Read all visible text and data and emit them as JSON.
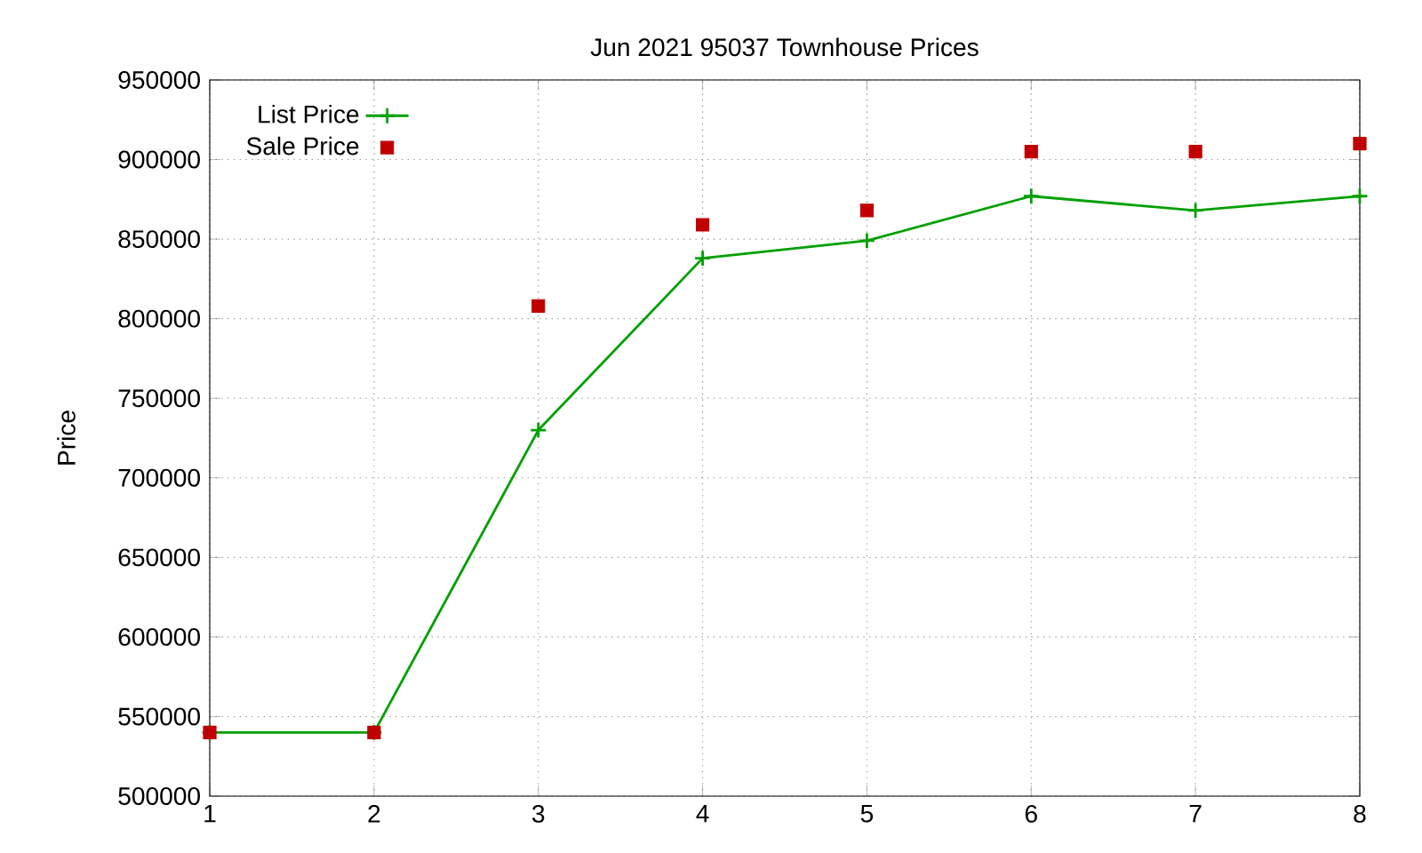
{
  "chart_data": {
    "type": "line",
    "title": "Jun 2021 95037 Townhouse Prices",
    "ylabel": "Price",
    "x": [
      1,
      2,
      3,
      4,
      5,
      6,
      7,
      8
    ],
    "series": [
      {
        "name": "List Price",
        "color": "#00a000",
        "marker": "cross",
        "line_style": "solid",
        "values": [
          540000,
          540000,
          730000,
          838000,
          849000,
          877000,
          868000,
          877000
        ]
      },
      {
        "name": "Sale Price",
        "type": "scatter",
        "color": "#c00000",
        "marker": "square",
        "values": [
          540000,
          540000,
          808000,
          859000,
          868000,
          905000,
          905000,
          910000
        ]
      }
    ],
    "xlim": [
      1,
      8
    ],
    "xticks": [
      1,
      2,
      3,
      4,
      5,
      6,
      7,
      8
    ],
    "ylim": [
      500000,
      950000
    ],
    "yticks": [
      500000,
      550000,
      600000,
      650000,
      700000,
      750000,
      800000,
      850000,
      900000,
      950000
    ],
    "grid": true,
    "legend": "top left"
  }
}
